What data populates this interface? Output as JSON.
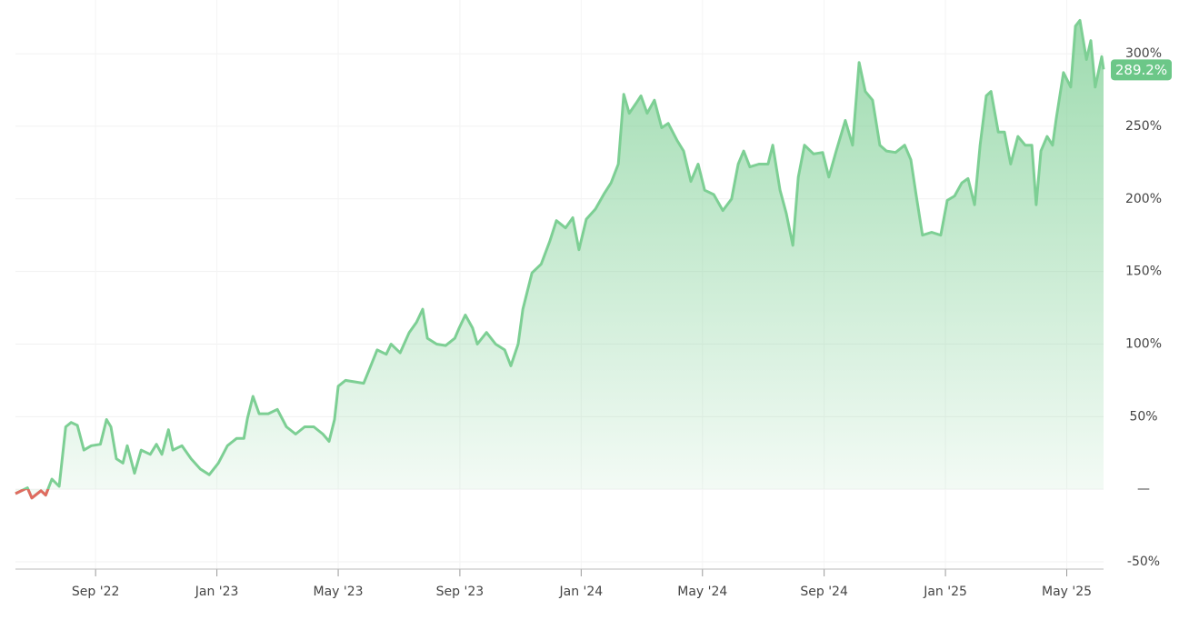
{
  "chart_data": {
    "type": "area",
    "x": [
      2022.447,
      2022.48,
      2022.492,
      2022.517,
      2022.53,
      2022.547,
      2022.567,
      2022.585,
      2022.6,
      2022.617,
      2022.635,
      2022.655,
      2022.68,
      2022.697,
      2022.709,
      2022.724,
      2022.742,
      2022.754,
      2022.774,
      2022.792,
      2022.817,
      2022.834,
      2022.849,
      2022.867,
      2022.879,
      2022.904,
      2022.929,
      2022.954,
      2022.979,
      2023.004,
      2023.029,
      2023.054,
      2023.074,
      2023.084,
      2023.099,
      2023.116,
      2023.141,
      2023.166,
      2023.191,
      2023.216,
      2023.241,
      2023.266,
      2023.291,
      2023.308,
      2023.323,
      2023.333,
      2023.353,
      2023.378,
      2023.403,
      2023.416,
      2023.44,
      2023.465,
      2023.478,
      2023.503,
      2023.528,
      2023.548,
      2023.565,
      2023.578,
      2023.603,
      2023.628,
      2023.653,
      2023.665,
      2023.682,
      2023.702,
      2023.715,
      2023.74,
      2023.765,
      2023.79,
      2023.807,
      2023.827,
      2023.84,
      2023.865,
      2023.89,
      2023.914,
      2023.932,
      2023.957,
      2023.977,
      2023.994,
      2024.014,
      2024.039,
      2024.064,
      2024.082,
      2024.102,
      2024.117,
      2024.132,
      2024.151,
      2024.164,
      2024.181,
      2024.201,
      2024.221,
      2024.239,
      2024.264,
      2024.281,
      2024.301,
      2024.321,
      2024.339,
      2024.364,
      2024.389,
      2024.413,
      2024.431,
      2024.446,
      2024.463,
      2024.488,
      2024.513,
      2024.526,
      2024.546,
      2024.563,
      2024.581,
      2024.596,
      2024.613,
      2024.638,
      2024.663,
      2024.68,
      2024.7,
      2024.725,
      2024.745,
      2024.763,
      2024.78,
      2024.8,
      2024.82,
      2024.838,
      2024.863,
      2024.888,
      2024.905,
      2024.92,
      2024.937,
      2024.962,
      2024.987,
      2025.005,
      2025.025,
      2025.045,
      2025.062,
      2025.08,
      2025.095,
      2025.112,
      2025.125,
      2025.145,
      2025.162,
      2025.179,
      2025.199,
      2025.219,
      2025.237,
      2025.249,
      2025.262,
      2025.279,
      2025.294,
      2025.304,
      2025.324,
      2025.344,
      2025.357,
      2025.369,
      2025.387,
      2025.399,
      2025.411,
      2025.429,
      2025.434
    ],
    "values": [
      -3,
      1,
      -6,
      -1,
      -4,
      7,
      2,
      43,
      46,
      44,
      27,
      30,
      31,
      48,
      43,
      21,
      18,
      30,
      11,
      27,
      24,
      31,
      24,
      41,
      27,
      30,
      21,
      14,
      10,
      18,
      30,
      35,
      35,
      49,
      64,
      52,
      52,
      55,
      43,
      38,
      43,
      43,
      38,
      33,
      48,
      71,
      75,
      74,
      73,
      81,
      96,
      93,
      100,
      94,
      108,
      115,
      124,
      104,
      100,
      99,
      104,
      111,
      120,
      111,
      100,
      108,
      100,
      96,
      85,
      100,
      124,
      149,
      155,
      171,
      185,
      180,
      187,
      165,
      186,
      193,
      204,
      211,
      224,
      272,
      259,
      266,
      271,
      259,
      268,
      249,
      252,
      240,
      233,
      212,
      224,
      206,
      203,
      192,
      200,
      224,
      233,
      222,
      224,
      224,
      237,
      206,
      190,
      168,
      215,
      237,
      231,
      232,
      215,
      233,
      254,
      237,
      294,
      274,
      268,
      237,
      233,
      232,
      237,
      227,
      202,
      175,
      177,
      175,
      199,
      202,
      211,
      214,
      196,
      237,
      271,
      274,
      246,
      246,
      224,
      243,
      237,
      237,
      196,
      233,
      243,
      237,
      255,
      287,
      277,
      319,
      323,
      296,
      309,
      277,
      298,
      289.2
    ],
    "last_value_label": "289.2%",
    "color": "#7dcf94",
    "negative_color": "#e06b60",
    "xlim": [
      2022.447,
      2025.434
    ],
    "ylim": [
      -55,
      337
    ],
    "xticks": [
      {
        "value": 2022.667,
        "label": "Sep '22"
      },
      {
        "value": 2023.0,
        "label": "Jan '23"
      },
      {
        "value": 2023.333,
        "label": "May '23"
      },
      {
        "value": 2023.667,
        "label": "Sep '23"
      },
      {
        "value": 2024.0,
        "label": "Jan '24"
      },
      {
        "value": 2024.333,
        "label": "May '24"
      },
      {
        "value": 2024.667,
        "label": "Sep '24"
      },
      {
        "value": 2025.0,
        "label": "Jan '25"
      },
      {
        "value": 2025.333,
        "label": "May '25"
      }
    ],
    "yticks": [
      {
        "value": -50,
        "label": "-50%"
      },
      {
        "value": 0,
        "label": "—"
      },
      {
        "value": 50,
        "label": "50%"
      },
      {
        "value": 100,
        "label": "100%"
      },
      {
        "value": 150,
        "label": "150%"
      },
      {
        "value": 200,
        "label": "200%"
      },
      {
        "value": 250,
        "label": "250%"
      },
      {
        "value": 300,
        "label": "300%"
      }
    ],
    "grid": true
  }
}
